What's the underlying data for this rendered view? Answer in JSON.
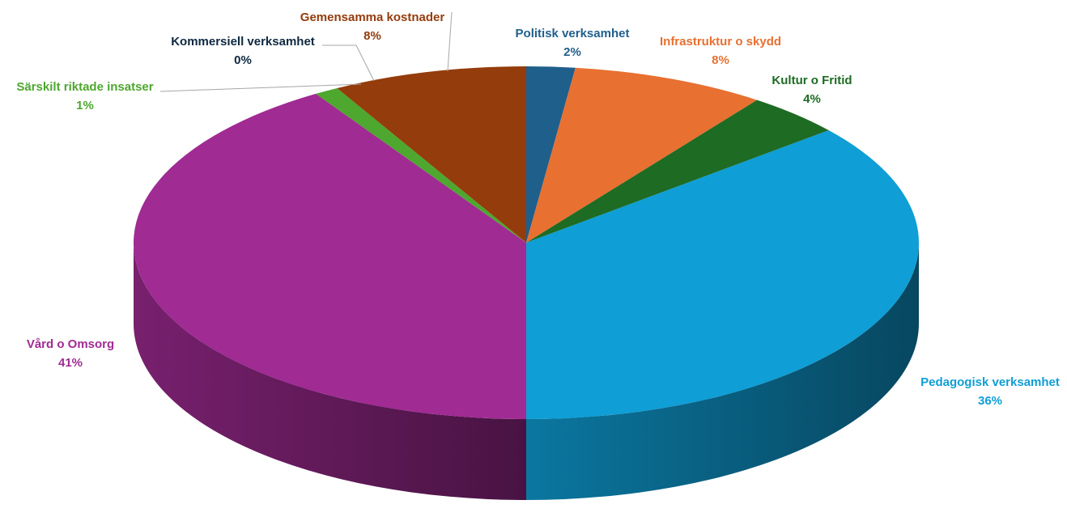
{
  "chart_data": {
    "type": "pie3d",
    "categories": [
      "Politisk verksamhet",
      "Infrastruktur o skydd",
      "Kultur o Fritid",
      "Pedagogisk verksamhet",
      "Vård o Omsorg",
      "Särskilt riktade insatser",
      "Kommersiell verksamhet",
      "Gemensamma kostnader"
    ],
    "values": [
      2,
      8,
      4,
      36,
      41,
      1,
      0,
      8
    ],
    "value_labels": [
      "2%",
      "8%",
      "4%",
      "36%",
      "41%",
      "1%",
      "0%",
      "8%"
    ],
    "colors": [
      "#1f5f8b",
      "#e87031",
      "#1e6b24",
      "#0f9ed5",
      "#a02b93",
      "#4ea72e",
      "#0e2841",
      "#943c0c"
    ]
  }
}
